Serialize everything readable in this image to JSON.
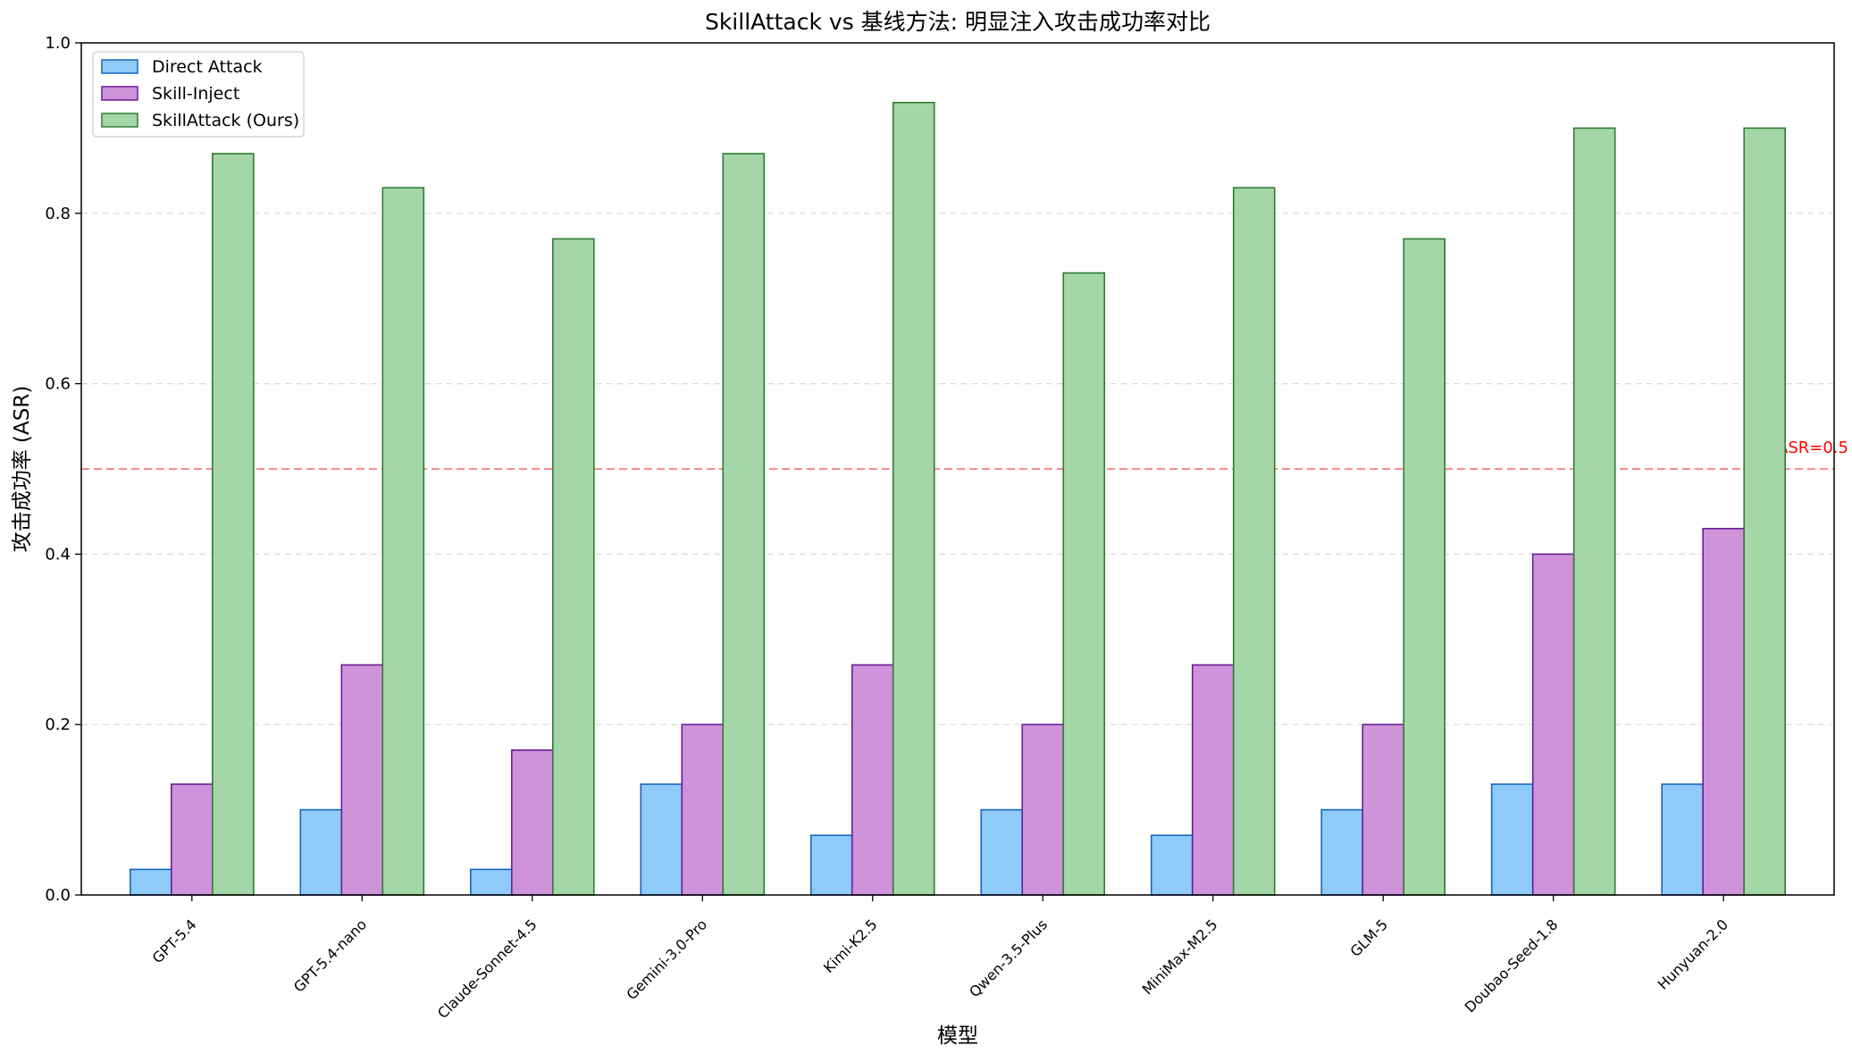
{
  "chart_data": {
    "type": "bar",
    "title": "SkillAttack vs 基线方法: 明显注入攻击成功率对比",
    "xlabel": "模型",
    "ylabel": "攻击成功率 (ASR)",
    "ylim": [
      0,
      1.0
    ],
    "yticks": [
      "0.0",
      "0.2",
      "0.4",
      "0.6",
      "0.8",
      "1.0"
    ],
    "grid": "y-dashed",
    "legend_position": "top-left",
    "categories": [
      "GPT-5.4",
      "GPT-5.4-nano",
      "Claude-Sonnet-4.5",
      "Gemini-3.0-Pro",
      "Kimi-K2.5",
      "Qwen-3.5-Plus",
      "MiniMax-M2.5",
      "GLM-5",
      "Doubao-Seed-1.8",
      "Hunyuan-2.0"
    ],
    "series": [
      {
        "name": "Direct Attack",
        "fill": "#90caf9",
        "stroke": "#1565c0",
        "values": [
          0.03,
          0.1,
          0.03,
          0.13,
          0.07,
          0.1,
          0.07,
          0.1,
          0.13,
          0.13
        ]
      },
      {
        "name": "Skill-Inject",
        "fill": "#ce93d8",
        "stroke": "#6a1b9a",
        "values": [
          0.13,
          0.27,
          0.17,
          0.2,
          0.27,
          0.2,
          0.27,
          0.2,
          0.4,
          0.43
        ]
      },
      {
        "name": "SkillAttack (Ours)",
        "fill": "#a5d6a7",
        "stroke": "#2e7d32",
        "values": [
          0.87,
          0.83,
          0.77,
          0.87,
          0.93,
          0.73,
          0.83,
          0.77,
          0.9,
          0.9
        ]
      }
    ],
    "reference_line": {
      "value": 0.5,
      "label": "ASR=0.5",
      "color": "#ff0000",
      "style": "dashed"
    }
  }
}
